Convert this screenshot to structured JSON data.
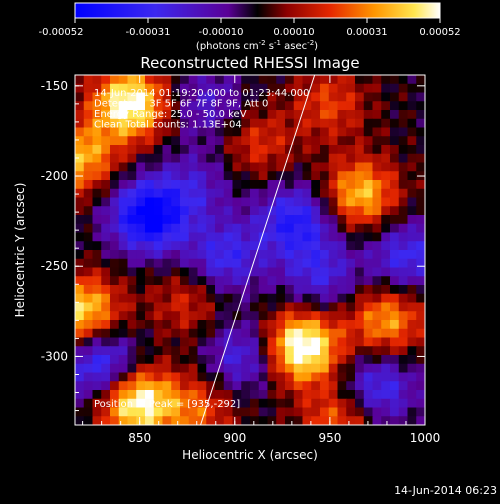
{
  "colorbar": {
    "ticks": [
      "-0.00052",
      "-0.00031",
      "-0.00010",
      "0.00010",
      "0.00031",
      "0.00052"
    ],
    "unit_label": "(photons cm",
    "unit_exp1": "-2",
    "unit_mid": " s",
    "unit_exp2": "-1",
    "unit_mid2": " asec",
    "unit_exp3": "-2",
    "unit_end": ")"
  },
  "footer": {
    "timestamp": "14-Jun-2014 06:23"
  },
  "chart_data": {
    "type": "heatmap",
    "title": "Reconstructed RHESSI Image",
    "xlabel": "Heliocentric X (arcsec)",
    "ylabel": "Heliocentric Y (arcsec)",
    "xlim": [
      816,
      1000
    ],
    "ylim": [
      -338,
      -144
    ],
    "xticks": [
      850,
      900,
      950,
      1000
    ],
    "yticks": [
      -150,
      -200,
      -250,
      -300
    ],
    "colormap": "blue-purple-red-yellow-white",
    "value_range": [
      -0.00052,
      0.00052
    ],
    "annotations": [
      "14-Jun-2014 01:19:20.000 to 01:23:44.000",
      "Detectors: 3F 5F 6F 7F 8F 9F, Att 0",
      "Energy Range: 25.0 - 50.0 keV",
      "Clean   Total counts: 1.13E+04"
    ],
    "peak_label": "Position of Peak = [935,-292]",
    "peak": [
      935,
      -292
    ],
    "blobs": [
      {
        "x": 845,
        "y": -160,
        "v": 0.00055
      },
      {
        "x": 818,
        "y": -190,
        "v": 0.00038
      },
      {
        "x": 820,
        "y": -275,
        "v": 0.00045
      },
      {
        "x": 848,
        "y": -325,
        "v": 0.00055
      },
      {
        "x": 880,
        "y": -330,
        "v": 0.00025
      },
      {
        "x": 935,
        "y": -295,
        "v": 0.0006
      },
      {
        "x": 966,
        "y": -210,
        "v": 0.0004
      },
      {
        "x": 980,
        "y": -280,
        "v": 0.00035
      },
      {
        "x": 955,
        "y": -335,
        "v": 0.00028
      },
      {
        "x": 875,
        "y": -270,
        "v": 0.00018
      },
      {
        "x": 912,
        "y": -182,
        "v": 0.0002
      },
      {
        "x": 950,
        "y": -160,
        "v": 0.00022
      },
      {
        "x": 855,
        "y": -222,
        "v": -0.00055
      },
      {
        "x": 830,
        "y": -305,
        "v": -0.0004
      },
      {
        "x": 895,
        "y": -245,
        "v": -0.0003
      },
      {
        "x": 905,
        "y": -300,
        "v": -0.00028
      },
      {
        "x": 932,
        "y": -225,
        "v": -0.00038
      },
      {
        "x": 945,
        "y": -255,
        "v": -0.00025
      },
      {
        "x": 990,
        "y": -245,
        "v": -0.0003
      },
      {
        "x": 975,
        "y": -318,
        "v": -0.00032
      },
      {
        "x": 885,
        "y": -160,
        "v": -0.0002
      },
      {
        "x": 880,
        "y": -205,
        "v": -0.00018
      }
    ],
    "limb_line": [
      [
        882,
        -338
      ],
      [
        942,
        -144
      ]
    ]
  }
}
